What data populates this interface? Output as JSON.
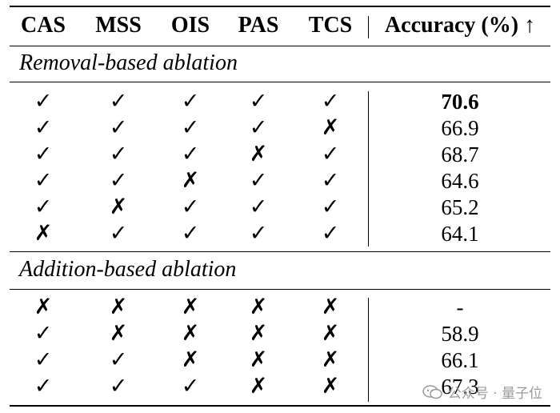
{
  "headers": [
    "CAS",
    "MSS",
    "OIS",
    "PAS",
    "TCS",
    "Accuracy (%) ↑"
  ],
  "sections": [
    {
      "title": "Removal-based ablation",
      "rows": [
        {
          "marks": [
            "check",
            "check",
            "check",
            "check",
            "check"
          ],
          "accuracy": "70.6",
          "best": true
        },
        {
          "marks": [
            "check",
            "check",
            "check",
            "check",
            "cross"
          ],
          "accuracy": "66.9",
          "best": false
        },
        {
          "marks": [
            "check",
            "check",
            "check",
            "cross",
            "check"
          ],
          "accuracy": "68.7",
          "best": false
        },
        {
          "marks": [
            "check",
            "check",
            "cross",
            "check",
            "check"
          ],
          "accuracy": "64.6",
          "best": false
        },
        {
          "marks": [
            "check",
            "cross",
            "check",
            "check",
            "check"
          ],
          "accuracy": "65.2",
          "best": false
        },
        {
          "marks": [
            "cross",
            "check",
            "check",
            "check",
            "check"
          ],
          "accuracy": "64.1",
          "best": false
        }
      ]
    },
    {
      "title": "Addition-based ablation",
      "rows": [
        {
          "marks": [
            "cross",
            "cross",
            "cross",
            "cross",
            "cross"
          ],
          "accuracy": "-",
          "best": false
        },
        {
          "marks": [
            "check",
            "cross",
            "cross",
            "cross",
            "cross"
          ],
          "accuracy": "58.9",
          "best": false
        },
        {
          "marks": [
            "check",
            "check",
            "cross",
            "cross",
            "cross"
          ],
          "accuracy": "66.1",
          "best": false
        },
        {
          "marks": [
            "check",
            "check",
            "check",
            "cross",
            "cross"
          ],
          "accuracy": "67.3",
          "best": false
        }
      ]
    }
  ],
  "symbols": {
    "check": "✓",
    "cross": "✗"
  },
  "watermark": "公众号 · 量子位"
}
